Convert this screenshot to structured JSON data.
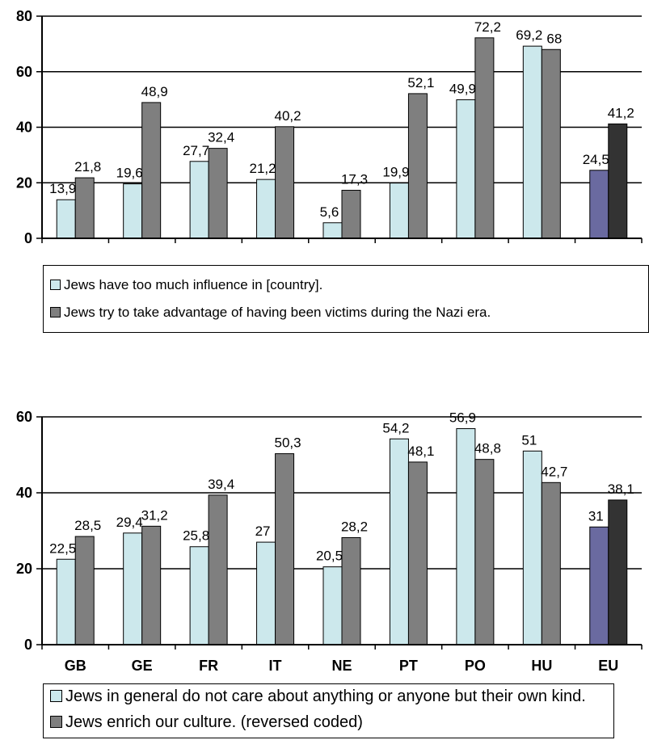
{
  "chart_data": [
    {
      "type": "bar",
      "categories": [
        "GB",
        "GE",
        "FR",
        "IT",
        "NE",
        "PT",
        "PO",
        "HU",
        "EU"
      ],
      "series": [
        {
          "name": "Jews have too much influence in [country].",
          "values": [
            13.9,
            19.6,
            27.7,
            21.2,
            5.6,
            19.9,
            49.9,
            69.2,
            24.5
          ],
          "labels": [
            "13,9",
            "19,6",
            "27,7",
            "21,2",
            "5,6",
            "19,9",
            "49,9",
            "69,2",
            "24,5"
          ]
        },
        {
          "name": "Jews try to take advantage of having been victims during the Nazi era.",
          "values": [
            21.8,
            48.9,
            32.4,
            40.2,
            17.3,
            52.1,
            72.2,
            68,
            41.2
          ],
          "labels": [
            "21,8",
            "48,9",
            "32,4",
            "40,2",
            "17,3",
            "52,1",
            "72,2",
            "68",
            "41,2"
          ]
        }
      ],
      "ylim": [
        0,
        80
      ],
      "yticks": [
        "0",
        "20",
        "40",
        "60",
        "80"
      ],
      "grid": true,
      "legend": "bottom",
      "colors": {
        "series1": "#cce8ec",
        "series2": "#7f7f7f",
        "series1_eu": "#6a6aa0",
        "series2_eu": "#333333"
      }
    },
    {
      "type": "bar",
      "categories": [
        "GB",
        "GE",
        "FR",
        "IT",
        "NE",
        "PT",
        "PO",
        "HU",
        "EU"
      ],
      "series": [
        {
          "name": "Jews in general do not care about anything or anyone but their own kind.",
          "values": [
            22.5,
            29.4,
            25.8,
            27,
            20.5,
            54.2,
            56.9,
            51,
            31
          ],
          "labels": [
            "22,5",
            "29,4",
            "25,8",
            "27",
            "20,5",
            "54,2",
            "56,9",
            "51",
            "31"
          ]
        },
        {
          "name": "Jews enrich our culture. (reversed coded)",
          "values": [
            28.5,
            31.2,
            39.4,
            50.3,
            28.2,
            48.1,
            48.8,
            42.7,
            38.1
          ],
          "labels": [
            "28,5",
            "31,2",
            "39,4",
            "50,3",
            "28,2",
            "48,1",
            "48,8",
            "42,7",
            "38,1"
          ]
        }
      ],
      "ylim": [
        0,
        60
      ],
      "yticks": [
        "0",
        "20",
        "40",
        "60"
      ],
      "grid": true,
      "legend": "bottom",
      "colors": {
        "series1": "#cce8ec",
        "series2": "#7f7f7f",
        "series1_eu": "#6a6aa0",
        "series2_eu": "#333333"
      }
    }
  ]
}
